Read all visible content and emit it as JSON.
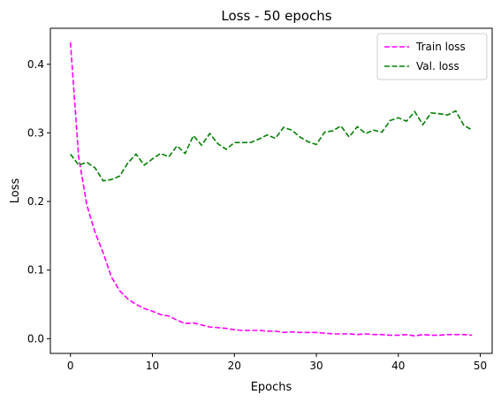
{
  "chart_data": {
    "type": "line",
    "title": "Loss - 50 epochs",
    "xlabel": "Epochs",
    "ylabel": "Loss",
    "xlim": [
      -2.45,
      51.45
    ],
    "ylim": [
      -0.0215,
      0.4525
    ],
    "xticks": [
      0,
      10,
      20,
      30,
      40,
      50
    ],
    "xtick_labels": [
      "0",
      "10",
      "20",
      "30",
      "40",
      "50"
    ],
    "yticks": [
      0.0,
      0.1,
      0.2,
      0.3,
      0.4
    ],
    "ytick_labels": [
      "0.0",
      "0.1",
      "0.2",
      "0.3",
      "0.4"
    ],
    "grid": false,
    "legend_position": "top-right",
    "x": [
      0,
      1,
      2,
      3,
      4,
      5,
      6,
      7,
      8,
      9,
      10,
      11,
      12,
      13,
      14,
      15,
      16,
      17,
      18,
      19,
      20,
      21,
      22,
      23,
      24,
      25,
      26,
      27,
      28,
      29,
      30,
      31,
      32,
      33,
      34,
      35,
      36,
      37,
      38,
      39,
      40,
      41,
      42,
      43,
      44,
      45,
      46,
      47,
      48,
      49
    ],
    "series": [
      {
        "name": "Train loss",
        "color": "#ff00ff",
        "style": "dashed",
        "values": [
          0.432,
          0.265,
          0.195,
          0.155,
          0.125,
          0.09,
          0.07,
          0.058,
          0.05,
          0.044,
          0.04,
          0.035,
          0.033,
          0.027,
          0.022,
          0.023,
          0.02,
          0.017,
          0.016,
          0.015,
          0.013,
          0.012,
          0.012,
          0.012,
          0.011,
          0.011,
          0.009,
          0.01,
          0.009,
          0.009,
          0.009,
          0.008,
          0.007,
          0.007,
          0.007,
          0.006,
          0.007,
          0.006,
          0.006,
          0.005,
          0.005,
          0.006,
          0.004,
          0.006,
          0.005,
          0.005,
          0.006,
          0.006,
          0.006,
          0.005
        ]
      },
      {
        "name": "Val. loss",
        "color": "#008000",
        "style": "dashed",
        "values": [
          0.269,
          0.253,
          0.257,
          0.249,
          0.23,
          0.232,
          0.237,
          0.256,
          0.269,
          0.253,
          0.262,
          0.27,
          0.265,
          0.281,
          0.27,
          0.296,
          0.282,
          0.299,
          0.284,
          0.276,
          0.286,
          0.286,
          0.286,
          0.291,
          0.297,
          0.292,
          0.308,
          0.304,
          0.294,
          0.287,
          0.283,
          0.301,
          0.303,
          0.31,
          0.294,
          0.309,
          0.299,
          0.304,
          0.301,
          0.318,
          0.322,
          0.317,
          0.331,
          0.312,
          0.329,
          0.328,
          0.326,
          0.332,
          0.311,
          0.304
        ]
      }
    ]
  }
}
